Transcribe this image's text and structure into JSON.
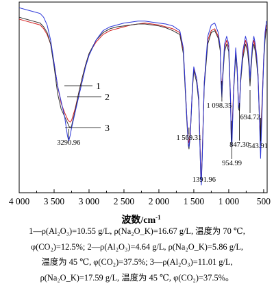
{
  "chart_data": {
    "type": "line",
    "xlabel": "波数/cm",
    "xlabel_sup": "-1",
    "xlim": [
      4000,
      450
    ],
    "x_ticks": [
      4000,
      3500,
      3000,
      2500,
      2000,
      1500,
      1000,
      500
    ],
    "x_tick_labels": [
      "4 000",
      "3 500",
      "3 000",
      "2 500",
      "2 000",
      "1 500",
      "1 000",
      "500"
    ],
    "ylim": [
      0,
      100
    ],
    "y_ticks": "none",
    "grid": false,
    "legend": "callout labels 1, 2, 3",
    "series": [
      {
        "name": "1",
        "color": "#d42020",
        "x": [
          4000,
          3900,
          3800,
          3700,
          3650,
          3600,
          3550,
          3500,
          3450,
          3400,
          3350,
          3300,
          3270,
          3250,
          3200,
          3150,
          3100,
          3050,
          3000,
          2900,
          2800,
          2700,
          2600,
          2500,
          2400,
          2300,
          2200,
          2100,
          2000,
          1900,
          1800,
          1700,
          1650,
          1600,
          1580,
          1569,
          1550,
          1520,
          1500,
          1460,
          1430,
          1410,
          1400,
          1392,
          1380,
          1350,
          1300,
          1250,
          1200,
          1150,
          1120,
          1110,
          1098,
          1085,
          1060,
          1030,
          1000,
          975,
          965,
          955,
          945,
          930,
          900,
          880,
          860,
          847,
          830,
          800,
          760,
          730,
          710,
          695,
          680,
          660,
          640,
          620,
          600,
          580,
          560,
          544,
          525,
          500,
          480,
          460
        ],
        "y": [
          91,
          90,
          89,
          88,
          86,
          83,
          78,
          68,
          56,
          47,
          42,
          38,
          37,
          38,
          44,
          52,
          60,
          67,
          73,
          79,
          83,
          85,
          86,
          87,
          88,
          88.5,
          89,
          88.5,
          88,
          87,
          86,
          84,
          75,
          40,
          28,
          26,
          32,
          55,
          65,
          60,
          50,
          25,
          10,
          8,
          20,
          58,
          80,
          85,
          86,
          82,
          76,
          60,
          55,
          62,
          76,
          80,
          76,
          50,
          32,
          30,
          40,
          55,
          74,
          66,
          46,
          45,
          60,
          72,
          80,
          76,
          68,
          58,
          67,
          77,
          80,
          76,
          70,
          62,
          40,
          28,
          46,
          70,
          82,
          88
        ]
      },
      {
        "name": "2",
        "color": "#333333",
        "x": [
          4000,
          3900,
          3800,
          3700,
          3650,
          3600,
          3550,
          3500,
          3450,
          3400,
          3350,
          3300,
          3290,
          3270,
          3250,
          3200,
          3150,
          3100,
          3050,
          3000,
          2900,
          2800,
          2700,
          2600,
          2500,
          2400,
          2300,
          2200,
          2100,
          2000,
          1900,
          1800,
          1700,
          1650,
          1600,
          1580,
          1569,
          1550,
          1520,
          1500,
          1460,
          1430,
          1410,
          1400,
          1392,
          1380,
          1350,
          1300,
          1250,
          1200,
          1150,
          1120,
          1110,
          1098,
          1085,
          1060,
          1030,
          1000,
          975,
          965,
          955,
          945,
          930,
          900,
          880,
          860,
          847,
          830,
          800,
          760,
          730,
          710,
          695,
          680,
          660,
          640,
          620,
          600,
          580,
          560,
          544,
          525,
          500,
          480,
          460
        ],
        "y": [
          92,
          91,
          90,
          89,
          87,
          84,
          78,
          66,
          52,
          44,
          40,
          36,
          35,
          34,
          35,
          43,
          52,
          60,
          67,
          73,
          80,
          84,
          86,
          87,
          87.5,
          88,
          88.5,
          88.5,
          88,
          87.5,
          86.5,
          85,
          83,
          73,
          38,
          25,
          23,
          30,
          54,
          64,
          58,
          48,
          22,
          8,
          6,
          18,
          56,
          78,
          84,
          85,
          81,
          74,
          58,
          52,
          60,
          74,
          78,
          74,
          48,
          30,
          28,
          38,
          53,
          72,
          64,
          44,
          43,
          58,
          70,
          78,
          74,
          66,
          56,
          65,
          75,
          78,
          74,
          68,
          60,
          38,
          25,
          44,
          68,
          80,
          86
        ]
      },
      {
        "name": "3",
        "color": "#2a35d8",
        "x": [
          4000,
          3900,
          3800,
          3700,
          3650,
          3600,
          3550,
          3500,
          3450,
          3400,
          3350,
          3310,
          3291,
          3270,
          3250,
          3200,
          3150,
          3100,
          3050,
          3000,
          2900,
          2800,
          2700,
          2600,
          2500,
          2400,
          2300,
          2200,
          2100,
          2000,
          1900,
          1800,
          1700,
          1650,
          1600,
          1580,
          1569,
          1550,
          1520,
          1500,
          1460,
          1430,
          1410,
          1400,
          1392,
          1380,
          1350,
          1300,
          1250,
          1200,
          1150,
          1120,
          1110,
          1098,
          1085,
          1060,
          1030,
          1000,
          975,
          965,
          955,
          945,
          930,
          900,
          880,
          860,
          847,
          830,
          800,
          760,
          730,
          710,
          695,
          680,
          660,
          640,
          620,
          600,
          580,
          560,
          544,
          525,
          500,
          480,
          460
        ],
        "y": [
          97,
          96,
          95,
          94,
          92,
          88,
          80,
          68,
          56,
          48,
          40,
          30,
          27,
          30,
          34,
          42,
          50,
          58,
          66,
          72,
          80,
          85,
          87,
          88,
          89,
          89.5,
          90,
          90,
          89.5,
          89,
          88.5,
          87.5,
          85,
          76,
          40,
          26,
          24,
          30,
          56,
          66,
          60,
          50,
          22,
          8,
          4,
          18,
          58,
          82,
          88,
          89,
          84,
          76,
          58,
          50,
          62,
          78,
          82,
          78,
          50,
          28,
          24,
          36,
          54,
          76,
          66,
          46,
          44,
          60,
          74,
          82,
          78,
          70,
          60,
          68,
          78,
          82,
          78,
          72,
          62,
          38,
          18,
          40,
          70,
          84,
          90
        ]
      }
    ],
    "peak_labels": [
      {
        "text": "3290.96",
        "x": 3291
      },
      {
        "text": "1 569.31",
        "x": 1569
      },
      {
        "text": "1391.96",
        "x": 1392
      },
      {
        "text": "1 098.35",
        "x": 1098
      },
      {
        "text": "954.99",
        "x": 955
      },
      {
        "text": "847.30",
        "x": 847
      },
      {
        "text": "694.72",
        "x": 695
      },
      {
        "text": "543.91",
        "x": 544
      }
    ],
    "curve_labels": [
      "1",
      "2",
      "3"
    ]
  },
  "caption": {
    "line1": "1—ρ(Al₂O₃)=10.55 g/L, ρ(Na₂O_K)=16.67 g/L, 温度为 70 ℃,",
    "line2": "φ(CO₂)=12.5%; 2—ρ(Al₂O₃)=4.64 g/L, ρ(Na₂O_K)=5.86 g/L,",
    "line3": "温度为 45 ℃, φ(CO₂)=37.5%; 3—ρ(Al₂O₃)=11.01 g/L,",
    "line4": "ρ(Na₂O_K)=17.59 g/L, 温度为 45 ℃, φ(CO₂)=37.5%。"
  }
}
